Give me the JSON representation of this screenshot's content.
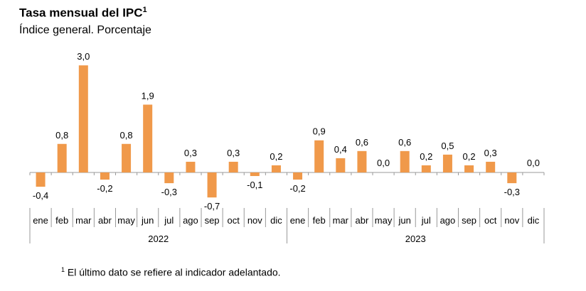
{
  "chart_data": {
    "type": "bar",
    "title": "Tasa mensual del IPC",
    "title_superscript": "1",
    "subtitle": "Índice general. Porcentaje",
    "groups": [
      {
        "label": "2022",
        "categories": [
          "ene",
          "feb",
          "mar",
          "abr",
          "may",
          "jun",
          "jul",
          "ago",
          "sep",
          "oct",
          "nov",
          "dic"
        ],
        "values": [
          -0.4,
          0.8,
          3.0,
          -0.2,
          0.8,
          1.9,
          -0.3,
          0.3,
          -0.7,
          0.3,
          -0.1,
          0.2
        ]
      },
      {
        "label": "2023",
        "categories": [
          "ene",
          "feb",
          "mar",
          "abr",
          "may",
          "jun",
          "jul",
          "ago",
          "sep",
          "oct",
          "nov",
          "dic"
        ],
        "values": [
          -0.2,
          0.9,
          0.4,
          0.6,
          0.0,
          0.6,
          0.2,
          0.5,
          0.2,
          0.3,
          -0.3,
          0.0
        ]
      }
    ],
    "decimal_separator": ",",
    "bar_color": "#F0994A",
    "data_labels": true,
    "grid": false,
    "legend": "none"
  },
  "footnote": {
    "marker": "1",
    "text": "El último dato se refiere al indicador adelantado."
  }
}
